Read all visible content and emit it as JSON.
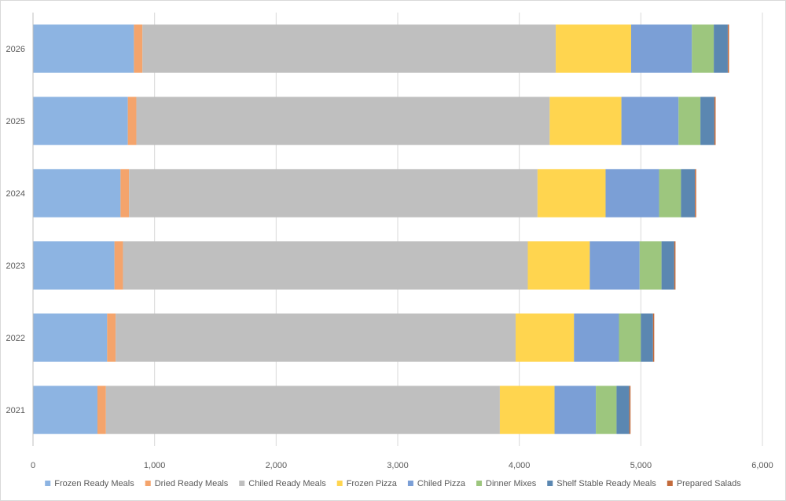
{
  "chart_data": {
    "type": "bar",
    "orientation": "horizontal",
    "stacked": true,
    "title": "",
    "xlabel": "",
    "ylabel": "",
    "xlim": [
      0,
      6000
    ],
    "x_ticks": [
      0,
      1000,
      2000,
      3000,
      4000,
      5000,
      6000
    ],
    "x_tick_labels": [
      "0",
      "1,000",
      "2,000",
      "3,000",
      "4,000",
      "5,000",
      "6,000"
    ],
    "grid": "vertical",
    "legend_position": "bottom",
    "categories": [
      "2026",
      "2025",
      "2024",
      "2023",
      "2022",
      "2021"
    ],
    "series": [
      {
        "name": "Frozen Ready Meals",
        "color": "#8db4e2",
        "values": [
          830,
          780,
          720,
          670,
          610,
          530
        ]
      },
      {
        "name": "Dried Ready Meals",
        "color": "#f4a46c",
        "values": [
          70,
          70,
          70,
          70,
          70,
          70
        ]
      },
      {
        "name": "Chiled Ready Meals",
        "color": "#bfbfbf",
        "values": [
          3400,
          3400,
          3360,
          3330,
          3290,
          3240
        ]
      },
      {
        "name": "Frozen Pizza",
        "color": "#ffd54f",
        "values": [
          620,
          590,
          560,
          510,
          480,
          450
        ]
      },
      {
        "name": "Chiled Pizza",
        "color": "#7b9fd6",
        "values": [
          500,
          470,
          440,
          410,
          370,
          340
        ]
      },
      {
        "name": "Dinner Mixes",
        "color": "#9dc67e",
        "values": [
          180,
          180,
          180,
          180,
          180,
          170
        ]
      },
      {
        "name": "Shelf Stable Ready Meals",
        "color": "#5b87b1",
        "values": [
          115,
          115,
          115,
          105,
          100,
          105
        ]
      },
      {
        "name": "Prepared Salads",
        "color": "#c36b3c",
        "values": [
          10,
          10,
          10,
          10,
          10,
          10
        ]
      }
    ]
  }
}
